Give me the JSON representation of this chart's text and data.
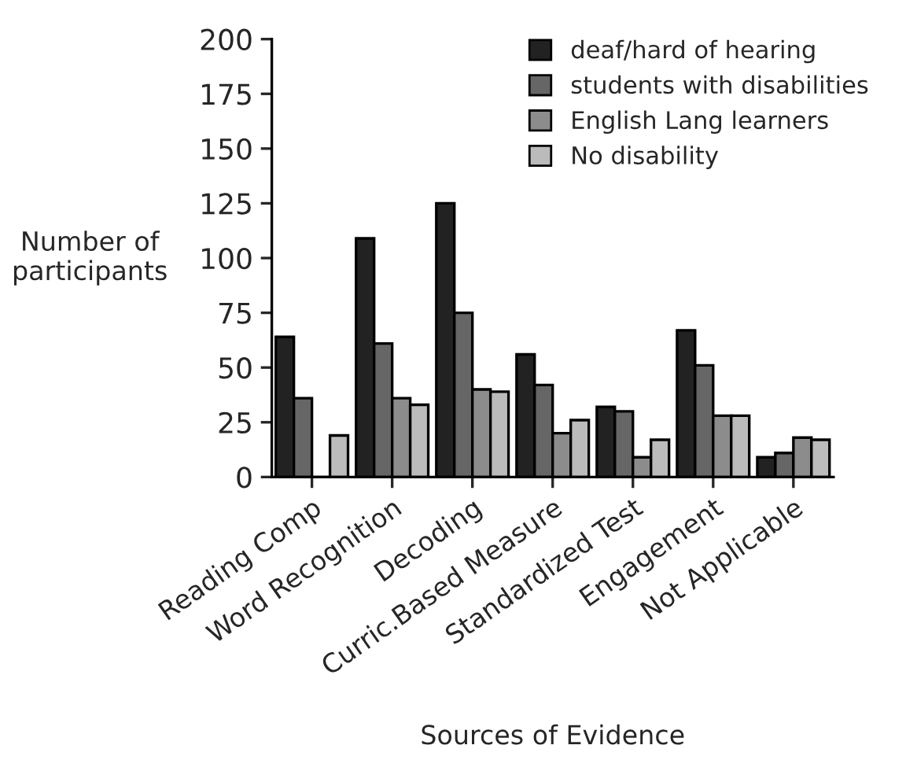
{
  "chart_data": {
    "type": "bar",
    "xlabel": "Sources of Evidence",
    "ylabel": "Number of\nparticipants",
    "categories": [
      "Reading Comp",
      "Word Recognition",
      "Decoding",
      "Curric.Based Measure",
      "Standardized Test",
      "Engagement",
      "Not Applicable"
    ],
    "series": [
      {
        "name": "deaf/hard of hearing",
        "color": "#222222",
        "values": [
          64,
          109,
          125,
          56,
          32,
          67,
          9
        ]
      },
      {
        "name": "students with disabilities",
        "color": "#666666",
        "values": [
          36,
          61,
          75,
          42,
          30,
          51,
          11
        ]
      },
      {
        "name": "English Lang learners",
        "color": "#8c8c8c",
        "values": [
          0,
          36,
          40,
          20,
          9,
          28,
          18
        ]
      },
      {
        "name": "No disability",
        "color": "#bbbbbb",
        "values": [
          19,
          33,
          39,
          26,
          17,
          28,
          17
        ]
      }
    ],
    "ylim": [
      0,
      200
    ],
    "yticks": [
      0,
      25,
      50,
      75,
      100,
      125,
      150,
      175,
      200
    ],
    "grid": false,
    "legend": "top right"
  }
}
